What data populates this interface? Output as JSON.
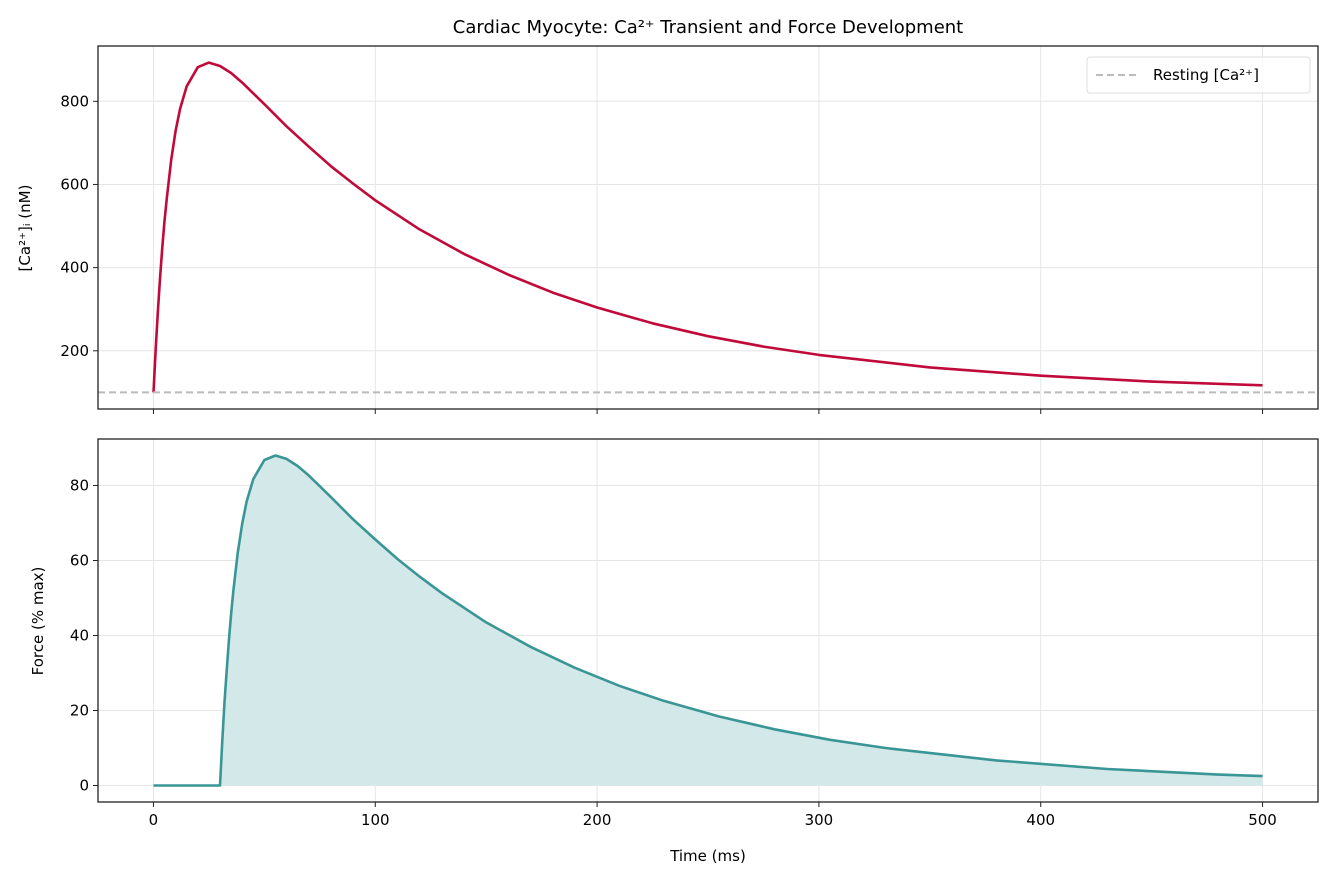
{
  "chart_data": [
    {
      "type": "line",
      "title": "Cardiac Myocyte: Ca²⁺ Transient and Force Development",
      "xlabel": "",
      "ylabel": "[Ca²⁺]ᵢ (nM)",
      "xlim": [
        -25,
        525
      ],
      "ylim": [
        60,
        933
      ],
      "xticks": [
        0,
        100,
        200,
        300,
        400,
        500
      ],
      "xtick_labels_shown": false,
      "yticks": [
        200,
        400,
        600,
        800
      ],
      "grid": true,
      "legend": "top-right",
      "series": [
        {
          "color": "#c00a3a",
          "x": [
            0,
            1,
            2,
            3,
            4,
            5,
            6,
            8,
            10,
            12,
            15,
            20,
            25,
            30,
            35,
            40,
            50,
            60,
            70,
            80,
            90,
            100,
            120,
            140,
            160,
            180,
            200,
            225,
            250,
            275,
            300,
            350,
            400,
            450,
            500
          ],
          "y": [
            100,
            204,
            296,
            377,
            449,
            512,
            567,
            659,
            729,
            782,
            836,
            882,
            893,
            885,
            868,
            845,
            793,
            740,
            691,
            644,
            602,
            562,
            492,
            433,
            383,
            340,
            304,
            266,
            235,
            210,
            190,
            160,
            140,
            126,
            117
          ]
        },
        {
          "name": "Resting [Ca²⁺]",
          "style": "dashed",
          "color": "#bbbbbb",
          "y_constant": 100
        }
      ]
    },
    {
      "type": "area",
      "xlabel": "Time (ms)",
      "ylabel": "Force (% max)",
      "xlim": [
        -25,
        525
      ],
      "ylim": [
        -4.4,
        92.4
      ],
      "xticks": [
        0,
        100,
        200,
        300,
        400,
        500
      ],
      "yticks": [
        0,
        20,
        40,
        60,
        80
      ],
      "grid": true,
      "series": [
        {
          "color": "#3a9696",
          "fill": "#d3e8e8",
          "x": [
            0,
            30,
            31,
            32,
            33,
            34,
            35,
            36,
            38,
            40,
            42,
            45,
            50,
            55,
            60,
            65,
            70,
            80,
            90,
            100,
            110,
            120,
            130,
            150,
            170,
            190,
            210,
            230,
            255,
            280,
            305,
            330,
            380,
            430,
            480,
            500
          ],
          "y": [
            0,
            0,
            11.5,
            21.8,
            30.7,
            38.7,
            45.7,
            51.8,
            62.0,
            69.8,
            75.7,
            81.7,
            86.8,
            88.0,
            87.1,
            85.2,
            82.7,
            76.9,
            71.0,
            65.6,
            60.4,
            55.7,
            51.3,
            43.5,
            37.0,
            31.4,
            26.6,
            22.6,
            18.4,
            15.0,
            12.2,
            10.0,
            6.7,
            4.4,
            2.9,
            2.5
          ]
        }
      ]
    }
  ]
}
